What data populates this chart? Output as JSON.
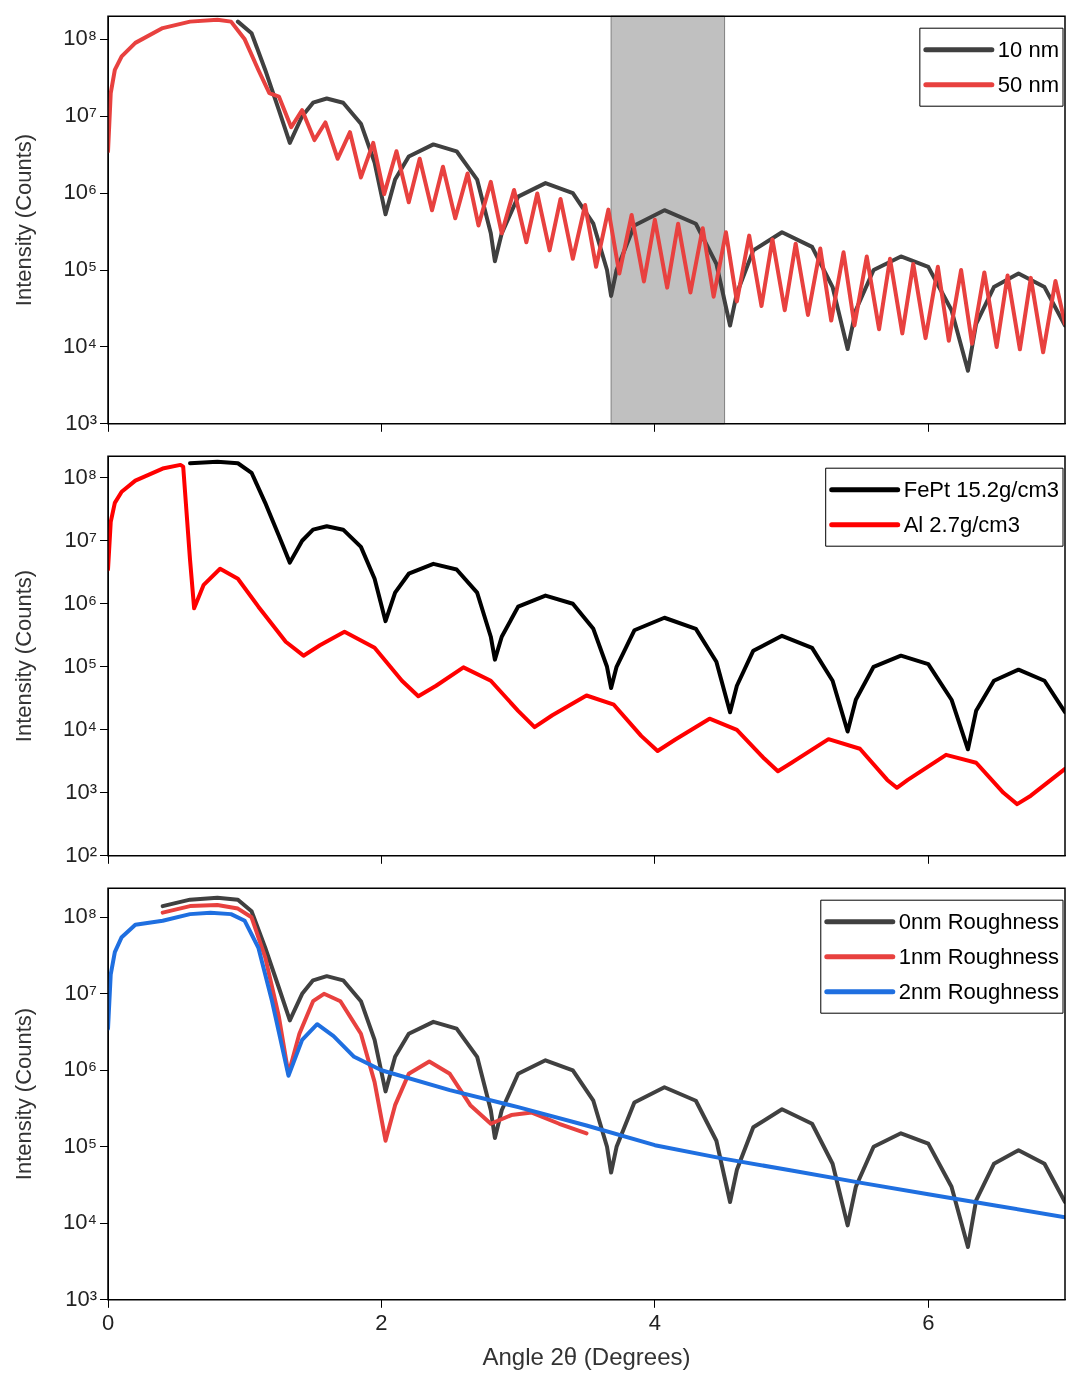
{
  "chart_data": [
    {
      "type": "line",
      "ylabel": "Intensity (Counts)",
      "xlim": [
        0,
        7
      ],
      "xticks": [
        0,
        2,
        4,
        6
      ],
      "ylim": [
        1000,
        200000000
      ],
      "log": "y",
      "tick_labels": "y",
      "legend": "top right",
      "marker": "none",
      "line_style": "solid",
      "yticks": [
        {
          "value": 1000,
          "label": "10³"
        },
        {
          "value": 10000,
          "label": "10⁴"
        },
        {
          "value": 100000,
          "label": "10⁵"
        },
        {
          "value": 1000000,
          "label": "10⁶"
        },
        {
          "value": 10000000,
          "label": "10⁷"
        },
        {
          "value": 100000000,
          "label": "10⁸"
        }
      ],
      "bands": [
        {
          "axis": "x",
          "from": 3.68,
          "to": 4.51,
          "color": "#c0c0c0"
        }
      ],
      "series": [
        {
          "name": "10 nm",
          "color": "#404040",
          "x": [
            0.95,
            1.05,
            1.15,
            1.25,
            1.33,
            1.42,
            1.5,
            1.6,
            1.72,
            1.85,
            1.95,
            2.03,
            2.1,
            2.2,
            2.38,
            2.55,
            2.7,
            2.8,
            2.83,
            2.88,
            3.0,
            3.2,
            3.4,
            3.55,
            3.65,
            3.68,
            3.72,
            3.85,
            4.07,
            4.3,
            4.45,
            4.55,
            4.6,
            4.72,
            4.93,
            5.15,
            5.3,
            5.41,
            5.47,
            5.6,
            5.8,
            6.0,
            6.17,
            6.29,
            6.35,
            6.48,
            6.66,
            6.85,
            7.0
          ],
          "values": [
            170000000,
            120000000,
            40000000,
            12000000,
            4500000,
            10000000,
            15000000,
            17000000,
            15000000,
            8000000,
            2500000,
            530000,
            1500000,
            3000000,
            4300000,
            3500000,
            1500000,
            300000,
            130000,
            300000,
            900000,
            1350000,
            1000000,
            400000,
            100000,
            46000,
            100000,
            380000,
            600000,
            400000,
            120000,
            19000,
            50000,
            180000,
            310000,
            200000,
            60000,
            9400,
            30000,
            100000,
            150000,
            110000,
            30000,
            4900,
            20000,
            60000,
            90000,
            60000,
            19000
          ]
        },
        {
          "name": "50 nm",
          "color": "#e8413f",
          "x": [
            0,
            0.02,
            0.05,
            0.1,
            0.2,
            0.4,
            0.6,
            0.8,
            0.9,
            1.0,
            1.1,
            1.18,
            1.25,
            1.34,
            1.42,
            1.51,
            1.59,
            1.68,
            1.77,
            1.85,
            1.94,
            2.02,
            2.11,
            2.2,
            2.28,
            2.37,
            2.45,
            2.54,
            2.63,
            2.71,
            2.8,
            2.88,
            2.97,
            3.06,
            3.14,
            3.23,
            3.31,
            3.4,
            3.49,
            3.57,
            3.66,
            3.74,
            3.83,
            3.92,
            4.0,
            4.09,
            4.17,
            4.26,
            4.35,
            4.43,
            4.52,
            4.6,
            4.69,
            4.78,
            4.86,
            4.95,
            5.03,
            5.12,
            5.21,
            5.29,
            5.38,
            5.46,
            5.55,
            5.64,
            5.72,
            5.81,
            5.89,
            5.98,
            6.07,
            6.15,
            6.24,
            6.32,
            6.41,
            6.5,
            6.58,
            6.67,
            6.75,
            6.84,
            6.93,
            7.0
          ],
          "values": [
            3500000,
            20000000,
            40000000,
            60000000,
            90000000,
            140000000,
            170000000,
            180000000,
            170000000,
            100000000,
            40000000,
            20000000,
            18000000,
            7200000,
            12000000,
            4900000,
            8300000,
            2800000,
            6200000,
            1600000,
            4500000,
            970000,
            3500000,
            760000,
            2800000,
            600000,
            2200000,
            470000,
            1800000,
            380000,
            1400000,
            300000,
            1100000,
            230000,
            990000,
            180000,
            840000,
            140000,
            700000,
            110000,
            610000,
            90000,
            520000,
            71000,
            450000,
            59000,
            400000,
            51000,
            350000,
            45000,
            310000,
            39000,
            280000,
            34000,
            250000,
            30000,
            220000,
            26000,
            190000,
            22000,
            170000,
            19000,
            150000,
            17000,
            140000,
            15000,
            120000,
            13000,
            110000,
            12000,
            100000,
            11000,
            93000,
            10000,
            85000,
            9300,
            79000,
            8500,
            72000,
            20000
          ]
        }
      ]
    },
    {
      "type": "line",
      "ylabel": "Intensity (Counts)",
      "xlim": [
        0,
        7
      ],
      "xticks": [
        0,
        2,
        4,
        6
      ],
      "ylim": [
        100,
        220000000
      ],
      "log": "y",
      "tick_labels": "y",
      "legend": "top right",
      "marker": "none",
      "line_style": "solid",
      "yticks": [
        {
          "value": 100,
          "label": "10²"
        },
        {
          "value": 1000,
          "label": "10³"
        },
        {
          "value": 10000,
          "label": "10⁴"
        },
        {
          "value": 100000,
          "label": "10⁵"
        },
        {
          "value": 1000000,
          "label": "10⁶"
        },
        {
          "value": 10000000,
          "label": "10⁷"
        },
        {
          "value": 100000000,
          "label": "10⁸"
        }
      ],
      "series": [
        {
          "name": "FePt 15.2g/cm3",
          "color": "#000000",
          "x": [
            0.6,
            0.8,
            0.95,
            1.05,
            1.15,
            1.25,
            1.33,
            1.42,
            1.5,
            1.6,
            1.72,
            1.85,
            1.95,
            2.03,
            2.1,
            2.2,
            2.38,
            2.55,
            2.7,
            2.8,
            2.83,
            2.88,
            3.0,
            3.2,
            3.4,
            3.55,
            3.65,
            3.68,
            3.72,
            3.85,
            4.07,
            4.3,
            4.45,
            4.55,
            4.6,
            4.72,
            4.93,
            5.15,
            5.3,
            5.41,
            5.47,
            5.6,
            5.8,
            6.0,
            6.17,
            6.29,
            6.35,
            6.48,
            6.66,
            6.85,
            7.0
          ],
          "values": [
            170000000,
            180000000,
            170000000,
            120000000,
            40000000,
            12000000,
            4500000,
            10000000,
            15000000,
            17000000,
            15000000,
            8000000,
            2500000,
            530000,
            1500000,
            3000000,
            4300000,
            3500000,
            1500000,
            300000,
            130000,
            300000,
            900000,
            1350000,
            1000000,
            400000,
            100000,
            46000,
            100000,
            380000,
            600000,
            400000,
            120000,
            19000,
            50000,
            180000,
            310000,
            200000,
            60000,
            9400,
            30000,
            100000,
            150000,
            110000,
            30000,
            4900,
            20000,
            60000,
            90000,
            60000,
            19000
          ]
        },
        {
          "name": "Al 2.7g/cm3",
          "color": "#ff0000",
          "x": [
            0,
            0.02,
            0.05,
            0.1,
            0.2,
            0.4,
            0.53,
            0.55,
            0.6,
            0.63,
            0.7,
            0.82,
            0.95,
            1.1,
            1.3,
            1.43,
            1.55,
            1.73,
            1.95,
            2.15,
            2.27,
            2.4,
            2.6,
            2.8,
            3.0,
            3.12,
            3.25,
            3.5,
            3.7,
            3.9,
            4.02,
            4.15,
            4.4,
            4.6,
            4.8,
            4.9,
            5.0,
            5.27,
            5.5,
            5.7,
            5.77,
            5.85,
            6.13,
            6.35,
            6.55,
            6.65,
            6.75,
            7.0
          ],
          "values": [
            3500000,
            20000000,
            40000000,
            60000000,
            90000000,
            140000000,
            160000000,
            150000000,
            5000000,
            850000,
            2000000,
            3600000,
            2500000,
            900000,
            250000,
            150000,
            220000,
            360000,
            200000,
            60000,
            34000,
            50000,
            98000,
            60000,
            20000,
            11000,
            17000,
            35000,
            25000,
            8000,
            4600,
            7000,
            15000,
            10000,
            3500,
            2200,
            3000,
            7100,
            5000,
            1600,
            1200,
            1600,
            4000,
            3000,
            1000,
            660,
            900,
            2400
          ]
        }
      ]
    },
    {
      "type": "line",
      "ylabel": "Intensity (Counts)",
      "xlabel": "Angle 2θ (Degrees)",
      "xlim": [
        0,
        7
      ],
      "xticks": [
        0,
        2,
        4,
        6
      ],
      "ylim": [
        1000,
        240000000
      ],
      "log": "y",
      "legend": "top right",
      "marker": "none",
      "line_style": "solid",
      "yticks": [
        {
          "value": 1000,
          "label": "10³"
        },
        {
          "value": 10000,
          "label": "10⁴"
        },
        {
          "value": 100000,
          "label": "10⁵"
        },
        {
          "value": 1000000,
          "label": "10⁶"
        },
        {
          "value": 10000000,
          "label": "10⁷"
        },
        {
          "value": 100000000,
          "label": "10⁸"
        }
      ],
      "series": [
        {
          "name": "0nm Roughness",
          "color": "#404040",
          "x": [
            0.4,
            0.6,
            0.8,
            0.95,
            1.05,
            1.15,
            1.25,
            1.33,
            1.42,
            1.5,
            1.6,
            1.72,
            1.85,
            1.95,
            2.03,
            2.1,
            2.2,
            2.38,
            2.55,
            2.7,
            2.8,
            2.83,
            2.88,
            3.0,
            3.2,
            3.4,
            3.55,
            3.65,
            3.68,
            3.72,
            3.85,
            4.07,
            4.3,
            4.45,
            4.55,
            4.6,
            4.72,
            4.93,
            5.15,
            5.3,
            5.41,
            5.47,
            5.6,
            5.8,
            6.0,
            6.17,
            6.29,
            6.35,
            6.48,
            6.66,
            6.85,
            7.0
          ],
          "values": [
            140000000,
            170000000,
            180000000,
            170000000,
            120000000,
            40000000,
            12000000,
            4500000,
            10000000,
            15000000,
            17000000,
            15000000,
            8000000,
            2500000,
            530000,
            1500000,
            3000000,
            4300000,
            3500000,
            1500000,
            300000,
            130000,
            300000,
            900000,
            1350000,
            1000000,
            400000,
            100000,
            46000,
            100000,
            380000,
            600000,
            400000,
            120000,
            19000,
            50000,
            180000,
            310000,
            200000,
            60000,
            9400,
            30000,
            100000,
            150000,
            110000,
            30000,
            4900,
            20000,
            60000,
            90000,
            60000,
            19000
          ]
        },
        {
          "name": "1nm Roughness",
          "color": "#e8413f",
          "x": [
            0.4,
            0.6,
            0.8,
            0.95,
            1.05,
            1.15,
            1.25,
            1.32,
            1.4,
            1.5,
            1.58,
            1.7,
            1.85,
            1.95,
            2.03,
            2.1,
            2.2,
            2.35,
            2.5,
            2.65,
            2.8,
            2.95,
            3.1,
            3.3,
            3.5
          ],
          "values": [
            115000000,
            140000000,
            145000000,
            130000000,
            100000000,
            30000000,
            5000000,
            900000,
            3000000,
            8000000,
            10000000,
            8000000,
            3000000,
            700000,
            120000,
            350000,
            900000,
            1300000,
            900000,
            350000,
            200000,
            260000,
            280000,
            200000,
            150000
          ]
        },
        {
          "name": "2nm Roughness",
          "color": "#1f6fe0",
          "x": [
            0,
            0.02,
            0.05,
            0.1,
            0.2,
            0.4,
            0.6,
            0.75,
            0.9,
            1.0,
            1.1,
            1.2,
            1.32,
            1.42,
            1.53,
            1.65,
            1.8,
            2.0,
            2.5,
            3.0,
            3.5,
            4.0,
            4.5,
            5.0,
            5.5,
            6.0,
            6.5,
            7.0
          ],
          "values": [
            3500000,
            18000000,
            35000000,
            55000000,
            80000000,
            90000000,
            110000000,
            115000000,
            110000000,
            90000000,
            40000000,
            8000000,
            850000,
            2500000,
            4000000,
            2800000,
            1500000,
            1000000,
            550000,
            330000,
            190000,
            105000,
            70000,
            49000,
            34000,
            24000,
            17000,
            12000
          ]
        }
      ]
    }
  ]
}
